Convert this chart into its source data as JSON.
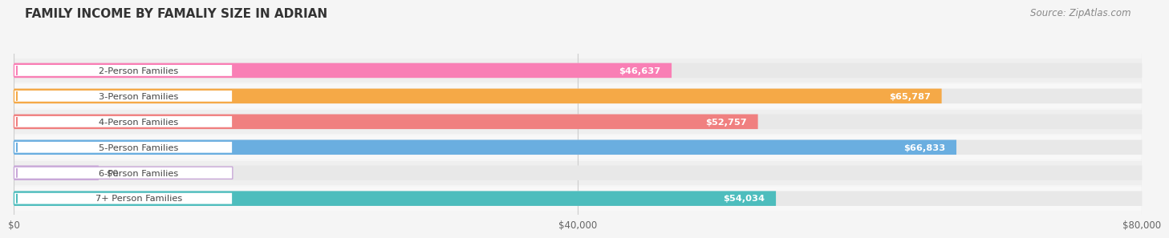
{
  "title": "Family Income by Famaliy Size in Adrian",
  "title_upper": "FAMILY INCOME BY FAMALIY SIZE IN ADRIAN",
  "source": "Source: ZipAtlas.com",
  "categories": [
    "2-Person Families",
    "3-Person Families",
    "4-Person Families",
    "5-Person Families",
    "6-Person Families",
    "7+ Person Families"
  ],
  "values": [
    46637,
    65787,
    52757,
    66833,
    0,
    54034
  ],
  "bar_colors": [
    "#F97FB5",
    "#F5A947",
    "#F08080",
    "#6AAEE0",
    "#C9A8D8",
    "#4DBDBD"
  ],
  "value_labels": [
    "$46,637",
    "$65,787",
    "$52,757",
    "$66,833",
    "$0",
    "$54,034"
  ],
  "xlim": [
    0,
    80000
  ],
  "xticks": [
    0,
    40000,
    80000
  ],
  "xtick_labels": [
    "$0",
    "$40,000",
    "$80,000"
  ],
  "bg_color": "#f5f5f5",
  "bar_bg_color": "#e8e8e8",
  "title_fontsize": 11,
  "source_fontsize": 8.5,
  "six_person_bar_width": 6000
}
